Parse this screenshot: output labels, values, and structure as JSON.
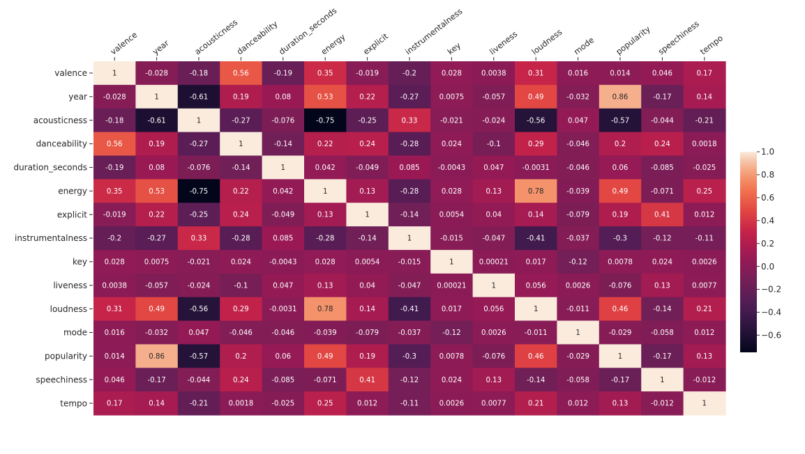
{
  "chart_data": {
    "type": "heatmap",
    "variables": [
      "valence",
      "year",
      "acousticness",
      "danceability",
      "duration_seconds",
      "energy",
      "explicit",
      "instrumentalness",
      "key",
      "liveness",
      "loudness",
      "mode",
      "popularity",
      "speechiness",
      "tempo"
    ],
    "matrix": [
      [
        1,
        -0.028,
        -0.18,
        0.56,
        -0.19,
        0.35,
        -0.019,
        -0.2,
        0.028,
        0.0038,
        0.31,
        0.016,
        0.014,
        0.046,
        0.17
      ],
      [
        -0.028,
        1,
        -0.61,
        0.19,
        0.08,
        0.53,
        0.22,
        -0.27,
        0.0075,
        -0.057,
        0.49,
        -0.032,
        0.86,
        -0.17,
        0.14
      ],
      [
        -0.18,
        -0.61,
        1,
        -0.27,
        -0.076,
        -0.75,
        -0.25,
        0.33,
        -0.021,
        -0.024,
        -0.56,
        0.047,
        -0.57,
        -0.044,
        -0.21
      ],
      [
        0.56,
        0.19,
        -0.27,
        1,
        -0.14,
        0.22,
        0.24,
        -0.28,
        0.024,
        -0.1,
        0.29,
        -0.046,
        0.2,
        0.24,
        0.0018
      ],
      [
        -0.19,
        0.08,
        -0.076,
        -0.14,
        1,
        0.042,
        -0.049,
        0.085,
        -0.0043,
        0.047,
        -0.0031,
        -0.046,
        0.06,
        -0.085,
        -0.025
      ],
      [
        0.35,
        0.53,
        -0.75,
        0.22,
        0.042,
        1,
        0.13,
        -0.28,
        0.028,
        0.13,
        0.78,
        -0.039,
        0.49,
        -0.071,
        0.25
      ],
      [
        -0.019,
        0.22,
        -0.25,
        0.24,
        -0.049,
        0.13,
        1,
        -0.14,
        0.0054,
        0.04,
        0.14,
        -0.079,
        0.19,
        0.41,
        0.012
      ],
      [
        -0.2,
        -0.27,
        0.33,
        -0.28,
        0.085,
        -0.28,
        -0.14,
        1,
        -0.015,
        -0.047,
        -0.41,
        -0.037,
        -0.3,
        -0.12,
        -0.11
      ],
      [
        0.028,
        0.0075,
        -0.021,
        0.024,
        -0.0043,
        0.028,
        0.0054,
        -0.015,
        1,
        0.00021,
        0.017,
        -0.12,
        0.0078,
        0.024,
        0.0026
      ],
      [
        0.0038,
        -0.057,
        -0.024,
        -0.1,
        0.047,
        0.13,
        0.04,
        -0.047,
        0.00021,
        1,
        0.056,
        0.0026,
        -0.076,
        0.13,
        0.0077
      ],
      [
        0.31,
        0.49,
        -0.56,
        0.29,
        -0.0031,
        0.78,
        0.14,
        -0.41,
        0.017,
        0.056,
        1,
        -0.011,
        0.46,
        -0.14,
        0.21
      ],
      [
        0.016,
        -0.032,
        0.047,
        -0.046,
        -0.046,
        -0.039,
        -0.079,
        -0.037,
        -0.12,
        0.0026,
        -0.011,
        1,
        -0.029,
        -0.058,
        0.012
      ],
      [
        0.014,
        0.86,
        -0.57,
        0.2,
        0.06,
        0.49,
        0.19,
        -0.3,
        0.0078,
        -0.076,
        0.46,
        -0.029,
        1,
        -0.17,
        0.13
      ],
      [
        0.046,
        -0.17,
        -0.044,
        0.24,
        -0.085,
        -0.071,
        0.41,
        -0.12,
        0.024,
        0.13,
        -0.14,
        -0.058,
        -0.17,
        1,
        -0.012
      ],
      [
        0.17,
        0.14,
        -0.21,
        0.0018,
        -0.025,
        0.25,
        0.012,
        -0.11,
        0.0026,
        0.0077,
        0.21,
        0.012,
        0.13,
        -0.012,
        1
      ]
    ],
    "colorscale": "rocket",
    "vmin": -0.75,
    "vmax": 1.0,
    "colorbar_ticks": [
      "1.0",
      "0.8",
      "0.6",
      "0.4",
      "0.2",
      "0.0",
      "−0.2",
      "−0.4",
      "−0.6"
    ],
    "x_tick_rotation": "45deg, top",
    "annotations": true
  }
}
